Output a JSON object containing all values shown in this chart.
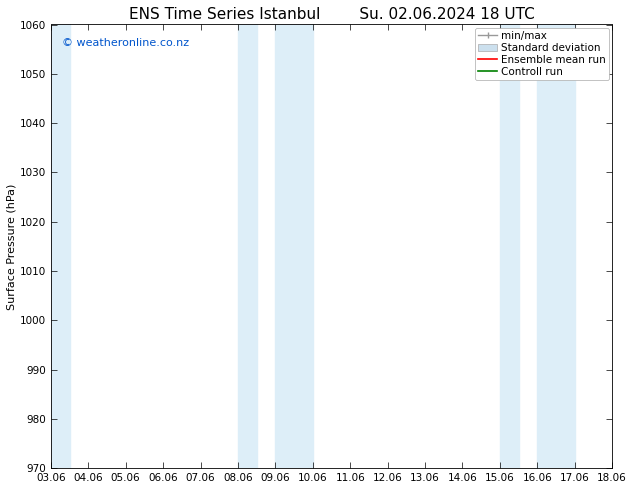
{
  "title_left": "ENS Time Series Istanbul",
  "title_right": "Su. 02.06.2024 18 UTC",
  "ylabel": "Surface Pressure (hPa)",
  "ylim": [
    970,
    1060
  ],
  "yticks": [
    970,
    980,
    990,
    1000,
    1010,
    1020,
    1030,
    1040,
    1050,
    1060
  ],
  "xtick_labels": [
    "03.06",
    "04.06",
    "05.06",
    "06.06",
    "07.06",
    "08.06",
    "09.06",
    "10.06",
    "11.06",
    "12.06",
    "13.06",
    "14.06",
    "15.06",
    "16.06",
    "17.06",
    "18.06"
  ],
  "xtick_positions": [
    0,
    1,
    2,
    3,
    4,
    5,
    6,
    7,
    8,
    9,
    10,
    11,
    12,
    13,
    14,
    15
  ],
  "shaded_bands": [
    {
      "x_start": 0,
      "x_end": 0.5,
      "color": "#ddeef8"
    },
    {
      "x_start": 5,
      "x_end": 5.5,
      "color": "#ddeef8"
    },
    {
      "x_start": 6,
      "x_end": 7,
      "color": "#ddeef8"
    },
    {
      "x_start": 12,
      "x_end": 12.5,
      "color": "#ddeef8"
    },
    {
      "x_start": 13,
      "x_end": 14,
      "color": "#ddeef8"
    }
  ],
  "watermark": "© weatheronline.co.nz",
  "watermark_color": "#0055cc",
  "bg_color": "#ffffff",
  "plot_bg_color": "#ffffff",
  "legend_items": [
    {
      "label": "min/max"
    },
    {
      "label": "Standard deviation"
    },
    {
      "label": "Ensemble mean run",
      "color": "#ff0000"
    },
    {
      "label": "Controll run",
      "color": "#008000"
    }
  ],
  "title_fontsize": 11,
  "axis_label_fontsize": 8,
  "tick_fontsize": 7.5,
  "watermark_fontsize": 8,
  "legend_fontsize": 7.5
}
